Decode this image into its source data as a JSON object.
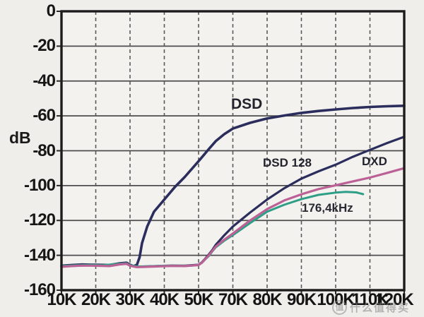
{
  "chart_data": {
    "type": "line",
    "title": "",
    "xlabel": "",
    "ylabel": "dB",
    "grid": {
      "horizontal": "solid",
      "vertical": "dashed"
    },
    "x_axis": {
      "tick_labels": [
        "10K",
        "20K",
        "30K",
        "40K",
        "50K",
        "70K",
        "80K",
        "90K",
        "100K",
        "110K",
        "120K"
      ],
      "tick_values_khz": [
        10,
        20,
        30,
        40,
        50,
        70,
        80,
        90,
        100,
        110,
        120
      ]
    },
    "y_axis": {
      "tick_labels": [
        "0",
        "-20",
        "-40",
        "-60",
        "-80",
        "-100",
        "-120",
        "-140",
        "-160"
      ],
      "min": -160,
      "max": 0,
      "step": 20
    },
    "series": [
      {
        "name": "DSD",
        "color": "#2b2d5c",
        "width": 3.6,
        "points": [
          [
            10,
            -146
          ],
          [
            13,
            -145.6
          ],
          [
            16,
            -145.3
          ],
          [
            20,
            -145.4
          ],
          [
            24,
            -145.6
          ],
          [
            27,
            -144.6
          ],
          [
            29,
            -144.3
          ],
          [
            30,
            -145.4
          ],
          [
            31,
            -146.2
          ],
          [
            32,
            -145.5
          ],
          [
            32.8,
            -141
          ],
          [
            33.5,
            -133
          ],
          [
            35,
            -123.5
          ],
          [
            37,
            -115
          ],
          [
            40,
            -108
          ],
          [
            43,
            -101
          ],
          [
            46,
            -95
          ],
          [
            50,
            -86
          ],
          [
            53,
            -82.5
          ],
          [
            56,
            -79
          ],
          [
            60,
            -74.5
          ],
          [
            65,
            -70.5
          ],
          [
            70,
            -67.3
          ],
          [
            75,
            -64
          ],
          [
            80,
            -61.5
          ],
          [
            85,
            -59.8
          ],
          [
            90,
            -58.3
          ],
          [
            95,
            -57.2
          ],
          [
            100,
            -56.3
          ],
          [
            105,
            -55.5
          ],
          [
            110,
            -54.9
          ],
          [
            115,
            -54.5
          ],
          [
            120,
            -54.2
          ]
        ]
      },
      {
        "name": "DSD 128",
        "color": "#2b2d5c",
        "width": 3.2,
        "points": [
          [
            10,
            -146.4
          ],
          [
            14,
            -146
          ],
          [
            18,
            -145.7
          ],
          [
            22,
            -145.9
          ],
          [
            26,
            -145.2
          ],
          [
            29,
            -144.8
          ],
          [
            30,
            -145.9
          ],
          [
            32,
            -146.6
          ],
          [
            35,
            -146.4
          ],
          [
            38,
            -146.2
          ],
          [
            42,
            -145.9
          ],
          [
            46,
            -146
          ],
          [
            50,
            -145.4
          ],
          [
            52,
            -144
          ],
          [
            54,
            -141.8
          ],
          [
            56,
            -139.5
          ],
          [
            58,
            -137
          ],
          [
            60,
            -134
          ],
          [
            65,
            -128.5
          ],
          [
            70,
            -123.5
          ],
          [
            75,
            -115.5
          ],
          [
            80,
            -108
          ],
          [
            85,
            -101.5
          ],
          [
            90,
            -96
          ],
          [
            95,
            -91.8
          ],
          [
            100,
            -88
          ],
          [
            105,
            -83.5
          ],
          [
            110,
            -79.5
          ],
          [
            115,
            -75.6
          ],
          [
            120,
            -72
          ]
        ]
      },
      {
        "name": "DXD",
        "color": "#bc6196",
        "width": 3.2,
        "points": [
          [
            10,
            -146.6
          ],
          [
            13,
            -146.2
          ],
          [
            16,
            -145.9
          ],
          [
            20,
            -146
          ],
          [
            24,
            -146.2
          ],
          [
            27,
            -145.2
          ],
          [
            29,
            -144.9
          ],
          [
            30,
            -146
          ],
          [
            32,
            -146.8
          ],
          [
            35,
            -146.6
          ],
          [
            38,
            -146.4
          ],
          [
            42,
            -146.1
          ],
          [
            46,
            -146.2
          ],
          [
            50,
            -145.6
          ],
          [
            52,
            -144.2
          ],
          [
            54,
            -142
          ],
          [
            56,
            -140
          ],
          [
            58,
            -137.5
          ],
          [
            60,
            -135
          ],
          [
            65,
            -131
          ],
          [
            70,
            -127.5
          ],
          [
            75,
            -120
          ],
          [
            80,
            -113.5
          ],
          [
            85,
            -108.5
          ],
          [
            90,
            -105
          ],
          [
            95,
            -102
          ],
          [
            100,
            -99.8
          ],
          [
            105,
            -97.6
          ],
          [
            110,
            -95.4
          ],
          [
            115,
            -92.7
          ],
          [
            120,
            -90
          ]
        ]
      },
      {
        "name": "176,4kHz",
        "color": "#2e9e86",
        "width": 3.0,
        "points": [
          [
            10,
            -146.2
          ],
          [
            14,
            -145.8
          ],
          [
            18,
            -145.5
          ],
          [
            22,
            -145.7
          ],
          [
            26,
            -145
          ],
          [
            29,
            -144.6
          ],
          [
            30,
            -145.7
          ],
          [
            32,
            -146.4
          ],
          [
            36,
            -146.3
          ],
          [
            40,
            -146
          ],
          [
            44,
            -146.1
          ],
          [
            48,
            -145.9
          ],
          [
            50,
            -145.5
          ],
          [
            52,
            -144.3
          ],
          [
            54,
            -142.2
          ],
          [
            56,
            -140.3
          ],
          [
            58,
            -137.8
          ],
          [
            60,
            -135.4
          ],
          [
            65,
            -131.6
          ],
          [
            70,
            -128.4
          ],
          [
            75,
            -121.5
          ],
          [
            80,
            -115
          ],
          [
            85,
            -111
          ],
          [
            90,
            -107.8
          ],
          [
            95,
            -105.3
          ],
          [
            100,
            -104
          ],
          [
            103,
            -103.6
          ],
          [
            106,
            -103.9
          ],
          [
            108,
            -104.9
          ]
        ]
      }
    ]
  },
  "watermark": {
    "badge": "值",
    "text": "什么值得买"
  }
}
